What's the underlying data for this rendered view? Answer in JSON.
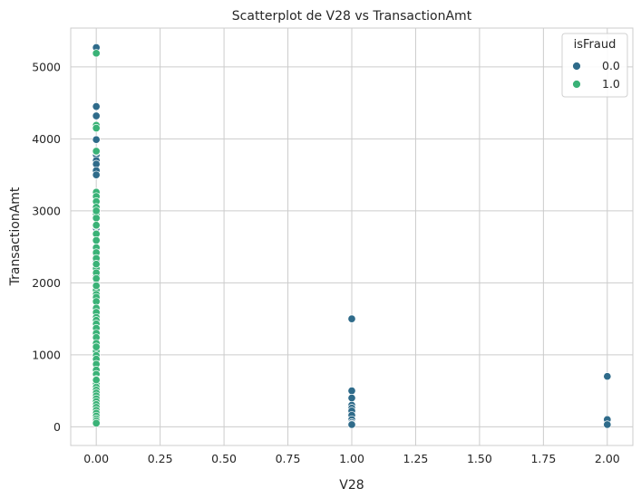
{
  "chart_data": {
    "type": "scatter",
    "title": "Scatterplot de V28 vs TransactionAmt",
    "xlabel": "V28",
    "ylabel": "TransactionAmt",
    "xlim": [
      -0.1,
      2.1
    ],
    "ylim": [
      -260,
      5540
    ],
    "xticks": [
      "0.00",
      "0.25",
      "0.50",
      "0.75",
      "1.00",
      "1.25",
      "1.50",
      "1.75",
      "2.00"
    ],
    "xtick_values": [
      0,
      0.25,
      0.5,
      0.75,
      1.0,
      1.25,
      1.5,
      1.75,
      2.0
    ],
    "yticks": [
      "0",
      "1000",
      "2000",
      "3000",
      "4000",
      "5000"
    ],
    "ytick_values": [
      0,
      1000,
      2000,
      3000,
      4000,
      5000
    ],
    "grid": true,
    "legend": {
      "title": "isFraud",
      "placement": "top-right"
    },
    "series": [
      {
        "name": "0.0",
        "color": "#2f6b8a",
        "x": [
          0,
          0,
          0,
          0,
          0,
          0,
          0,
          0,
          0,
          0,
          0,
          0,
          0,
          0,
          0,
          0,
          0,
          0,
          0,
          0,
          0,
          0,
          0,
          0,
          0,
          0,
          1,
          1,
          1,
          1,
          1,
          1,
          1,
          1,
          1,
          1,
          1,
          2,
          2,
          2
        ],
        "y": [
          5270,
          4450,
          4320,
          4170,
          3990,
          3780,
          3700,
          3650,
          3560,
          3500,
          2760,
          2400,
          2300,
          2100,
          2050,
          1980,
          1760,
          1540,
          1490,
          1300,
          1230,
          1000,
          800,
          640,
          400,
          200,
          1500,
          500,
          400,
          300,
          260,
          220,
          160,
          100,
          60,
          40,
          30,
          700,
          100,
          30
        ]
      },
      {
        "name": "1.0",
        "color": "#3ab277",
        "x": [
          0,
          0,
          0,
          0,
          0,
          0,
          0,
          0,
          0,
          0,
          0,
          0,
          0,
          0,
          0,
          0,
          0,
          0,
          0,
          0,
          0,
          0,
          0,
          0,
          0,
          0,
          0,
          0,
          0,
          0,
          0,
          0,
          0,
          0,
          0,
          0,
          0,
          0,
          0,
          0,
          0,
          0,
          0,
          0,
          0,
          0,
          0,
          0,
          0,
          0,
          0,
          0,
          0,
          0,
          0,
          0,
          0,
          0,
          0,
          0,
          0,
          0,
          0,
          0
        ],
        "y": [
          5190,
          4190,
          3820,
          3260,
          3200,
          3130,
          3050,
          2960,
          2900,
          2790,
          2680,
          2590,
          2490,
          2420,
          2340,
          2260,
          2200,
          2140,
          2060,
          1960,
          1900,
          1840,
          1800,
          1740,
          1650,
          1590,
          1520,
          1480,
          1430,
          1370,
          1300,
          1240,
          1160,
          1100,
          1050,
          990,
          940,
          870,
          790,
          730,
          660,
          600,
          550,
          510,
          470,
          430,
          390,
          350,
          310,
          270,
          230,
          190,
          150,
          110,
          80,
          50,
          650,
          1110,
          1960,
          2260,
          2800,
          3000,
          3830,
          4150
        ]
      }
    ]
  }
}
